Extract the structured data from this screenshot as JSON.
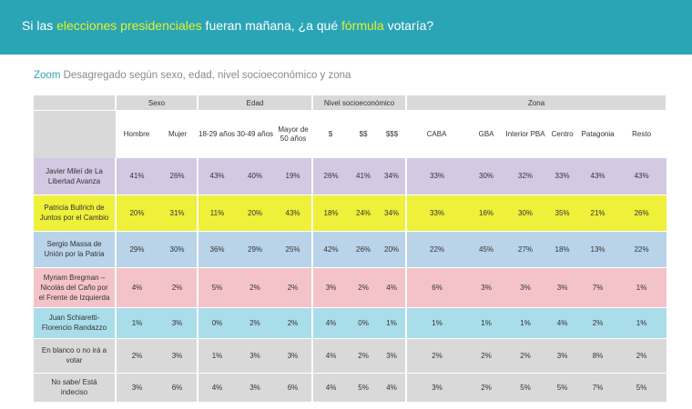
{
  "header": {
    "q_part1": "Si las ",
    "q_hl1": "elecciones presidenciales",
    "q_part2": " fueran mañana, ¿a qué ",
    "q_hl2": "fórmula",
    "q_part3": " votaría?"
  },
  "subtitle": {
    "zoom": "Zoom",
    "text": " Desagregado según sexo, edad, nivel socioeconómico y  zona"
  },
  "chart_data": {
    "type": "table",
    "groups": [
      {
        "label": "Sexo",
        "span": 2
      },
      {
        "label": "Edad",
        "span": 3
      },
      {
        "label": "Nivel socioeconómico",
        "span": 3
      },
      {
        "label": "Zona",
        "span": 6
      }
    ],
    "columns": [
      "Hombre",
      "Mujer",
      "18-29 años",
      "30-49 años",
      "Mayor de 50 años",
      "$",
      "$$",
      "$$$",
      "CABA",
      "GBA",
      "Interior PBA",
      "Centro",
      "Patagonia",
      "Resto"
    ],
    "rows": [
      {
        "label": "Javier Mileí de La Libertad Avanza",
        "values": [
          "41%",
          "26%",
          "43%",
          "40%",
          "19%",
          "26%",
          "41%",
          "34%",
          "33%",
          "30%",
          "32%",
          "33%",
          "43%",
          "43%"
        ]
      },
      {
        "label": "Patricia Bullrich de Juntos por el Cambio",
        "values": [
          "20%",
          "31%",
          "11%",
          "20%",
          "43%",
          "18%",
          "24%",
          "34%",
          "33%",
          "16%",
          "30%",
          "35%",
          "21%",
          "26%"
        ]
      },
      {
        "label": "Sergio Massa de Unión por la Patria",
        "values": [
          "29%",
          "30%",
          "36%",
          "29%",
          "25%",
          "42%",
          "26%",
          "20%",
          "22%",
          "45%",
          "27%",
          "18%",
          "13%",
          "22%"
        ]
      },
      {
        "label": "Myriam Bregman – Nicolás del Caño por el Frente de Izquierda",
        "values": [
          "4%",
          "2%",
          "5%",
          "2%",
          "2%",
          "3%",
          "2%",
          "4%",
          "6%",
          "3%",
          "3%",
          "3%",
          "7%",
          "1%"
        ]
      },
      {
        "label": "Juan Schiaretti- Florencio Randazzo",
        "values": [
          "1%",
          "3%",
          "0%",
          "2%",
          "2%",
          "4%",
          "0%",
          "1%",
          "1%",
          "1%",
          "1%",
          "4%",
          "2%",
          "1%"
        ]
      },
      {
        "label": "En blanco o no irá a votar",
        "values": [
          "2%",
          "3%",
          "1%",
          "3%",
          "3%",
          "4%",
          "2%",
          "3%",
          "2%",
          "2%",
          "2%",
          "3%",
          "8%",
          "2%"
        ]
      },
      {
        "label": "No sabe/ Está indeciso",
        "values": [
          "3%",
          "6%",
          "4%",
          "3%",
          "6%",
          "4%",
          "5%",
          "4%",
          "3%",
          "2%",
          "5%",
          "5%",
          "7%",
          "5%"
        ]
      }
    ]
  },
  "row_colors": [
    "#d3c9e3",
    "#eef03a",
    "#b9d3e9",
    "#f3c3c9",
    "#a9dde9",
    "#d9d9d9",
    "#d9d9d9"
  ]
}
